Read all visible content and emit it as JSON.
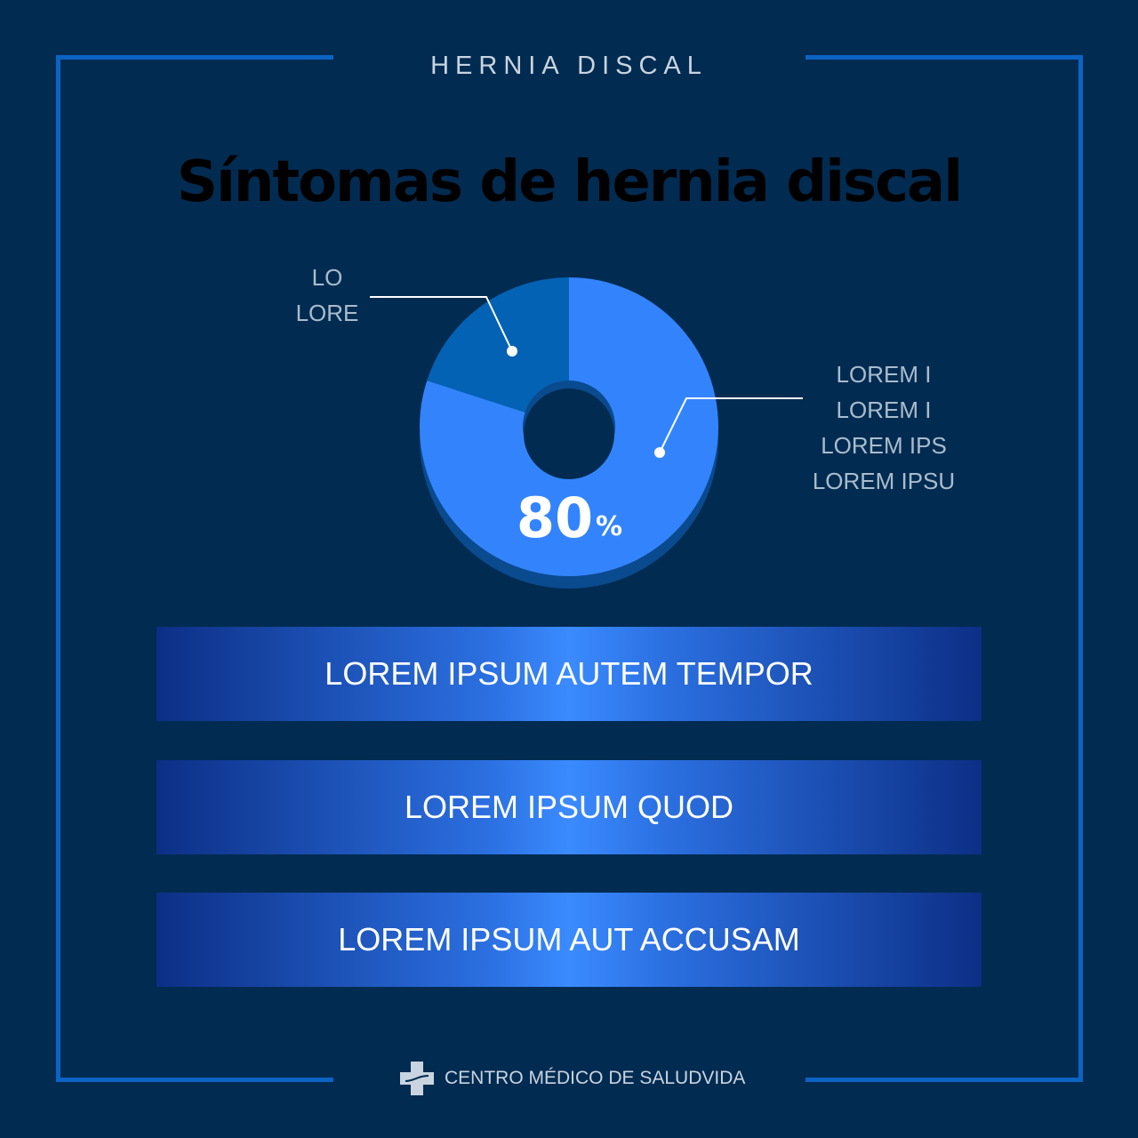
{
  "header": {
    "kicker": "HERNIA DISCAL",
    "title": "Síntomas de hernia discal"
  },
  "chart_data": {
    "type": "pie",
    "style": "donut",
    "slices": [
      {
        "label": "LOREM I LOREM I LOREM IPS LOREM IPSU",
        "value": 80,
        "color": "#3384fc"
      },
      {
        "label": "LO LORE",
        "value": 20,
        "color": "#0462b4"
      }
    ],
    "data_label": "80",
    "data_label_unit": "%",
    "labels_left": [
      "LO",
      "LORE"
    ],
    "labels_right": [
      "LOREM I",
      "LOREM I",
      "LOREM IPS",
      "LOREM IPSU"
    ]
  },
  "bars": [
    "LOREM IPSUM AUTEM TEMPOR",
    "LOREM IPSUM QUOD",
    "LOREM IPSUM AUT ACCUSAM"
  ],
  "footer": {
    "brand": "CENTRO MÉDICO DE SALUDVIDA",
    "icon": "medical-cross-icon"
  },
  "colors": {
    "background": "#022b51",
    "frame": "#0b63c4"
  }
}
